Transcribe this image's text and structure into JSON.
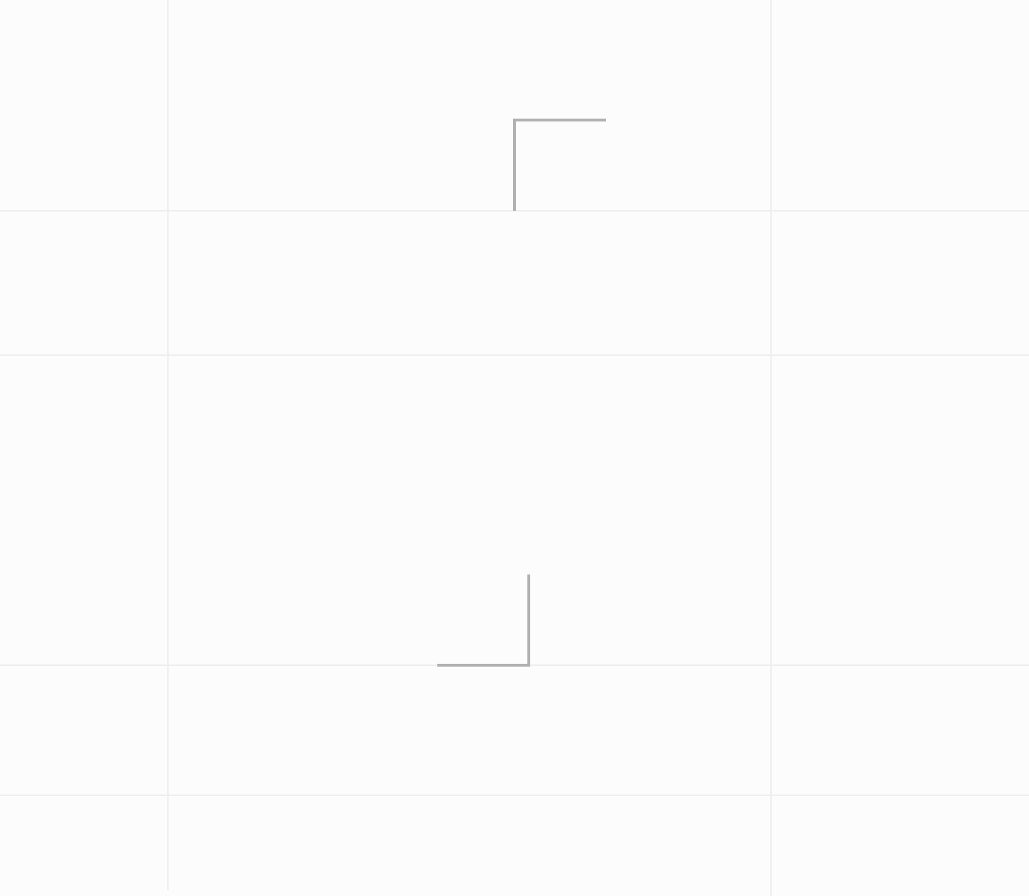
{
  "page": {
    "background_color": "#fcfcfc",
    "grid_line_color": "#eeeeee",
    "corner_mark_color": "#b1b1b1"
  }
}
